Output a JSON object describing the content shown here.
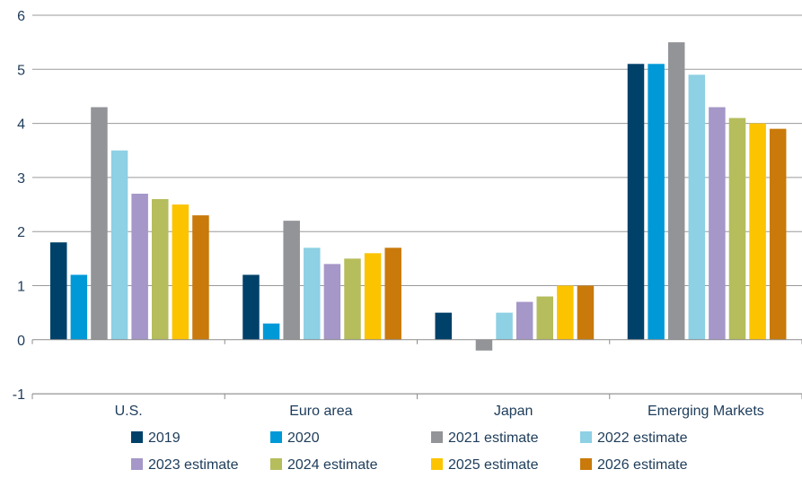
{
  "chart_data": {
    "type": "bar",
    "title": "",
    "xlabel": "",
    "ylabel": "",
    "ylim": [
      -1,
      6
    ],
    "yticks": [
      -1,
      0,
      1,
      2,
      3,
      4,
      5,
      6
    ],
    "grid": true,
    "legend_placement": "bottom",
    "categories": [
      "U.S.",
      "Euro area",
      "Japan",
      "Emerging Markets"
    ],
    "series": [
      {
        "name": "2019",
        "color": "#00416a",
        "values": [
          1.8,
          1.2,
          0.5,
          5.1
        ]
      },
      {
        "name": "2020",
        "color": "#0099d8",
        "values": [
          1.2,
          0.3,
          0,
          5.1
        ]
      },
      {
        "name": "2021 estimate",
        "color": "#929497",
        "values": [
          4.3,
          2.2,
          -0.2,
          5.5
        ]
      },
      {
        "name": "2022 estimate",
        "color": "#8ed0e4",
        "values": [
          3.5,
          1.7,
          0.5,
          4.9
        ]
      },
      {
        "name": "2023 estimate",
        "color": "#a597c8",
        "values": [
          2.7,
          1.4,
          0.7,
          4.3
        ]
      },
      {
        "name": "2024 estimate",
        "color": "#b5bd5d",
        "values": [
          2.6,
          1.5,
          0.8,
          4.1
        ]
      },
      {
        "name": "2025 estimate",
        "color": "#fcc400",
        "values": [
          2.5,
          1.6,
          1.0,
          4.0
        ]
      },
      {
        "name": "2026 estimate",
        "color": "#c97a0a",
        "values": [
          2.3,
          1.7,
          1.0,
          3.9
        ]
      }
    ]
  }
}
